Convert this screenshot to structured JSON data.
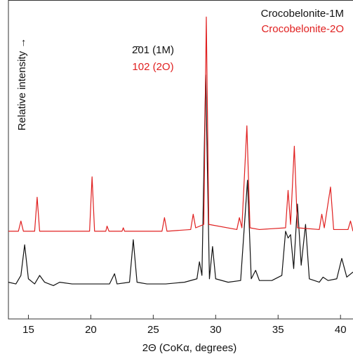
{
  "chart_data": {
    "type": "line",
    "x_label": "2Θ (CoKα, degrees)",
    "y_label": "Relative intensity →",
    "annotations": [
      "2̄01 (1M)",
      "102 (2O)"
    ],
    "xlim": [
      13.4,
      41.0
    ],
    "ylim": [
      6.2,
      100
    ],
    "xticks": [
      15,
      20,
      25,
      30,
      35,
      40
    ],
    "legend": "top-right",
    "series": [
      {
        "name": "Crocobelonite-1M",
        "color": "#111111",
        "x": [
          13.4,
          14.0,
          14.4,
          14.7,
          15.0,
          15.5,
          15.9,
          16.3,
          17.0,
          17.5,
          18.5,
          19.5,
          20.5,
          21.5,
          21.9,
          22.1,
          23.1,
          23.4,
          23.7,
          24.5,
          26.0,
          27.5,
          28.5,
          28.7,
          28.9,
          29.2,
          29.5,
          29.75,
          30.0,
          31.0,
          32.0,
          32.55,
          32.85,
          33.2,
          33.5,
          34.5,
          35.3,
          35.6,
          35.8,
          36.0,
          36.25,
          36.55,
          36.85,
          37.2,
          37.5,
          38.3,
          38.6,
          39.0,
          39.7,
          40.1,
          40.5,
          41.0
        ],
        "values": [
          17,
          16.5,
          19,
          28,
          18,
          16.5,
          19,
          17,
          16,
          17,
          16.5,
          16.5,
          16.5,
          16.5,
          19.5,
          16.5,
          17,
          29.5,
          17,
          16.5,
          16.5,
          17,
          18,
          23,
          19,
          78,
          18,
          27.5,
          18,
          17,
          17.5,
          47,
          18,
          20.5,
          17.5,
          17.5,
          19,
          32,
          30,
          31,
          21,
          40,
          22,
          34,
          18,
          17,
          18.5,
          17.5,
          18,
          24,
          18.5,
          20
        ]
      },
      {
        "name": "Crocobelonite-2O",
        "color": "#e02020",
        "x": [
          13.4,
          14.2,
          14.4,
          14.6,
          15.5,
          15.7,
          15.9,
          19.9,
          20.1,
          20.3,
          21.2,
          21.3,
          21.45,
          22.5,
          22.6,
          22.7,
          25.7,
          25.9,
          26.1,
          28.0,
          28.2,
          28.4,
          29.05,
          29.25,
          29.45,
          31.7,
          31.9,
          32.1,
          32.5,
          32.75,
          33.5,
          35.6,
          35.8,
          36.0,
          36.3,
          36.55,
          38.3,
          38.5,
          38.7,
          39.2,
          39.45,
          40.6,
          40.8,
          41.0
        ],
        "values": [
          32,
          32,
          35,
          32,
          32,
          42,
          32,
          32,
          48,
          32,
          32,
          33.5,
          32,
          32,
          33,
          32,
          32,
          36,
          32,
          32.5,
          37,
          33,
          34,
          95,
          34,
          32.5,
          36,
          33,
          63,
          33,
          32.5,
          33,
          44,
          34,
          57,
          33,
          32.5,
          37,
          33,
          45,
          32.5,
          32.5,
          35,
          32
        ]
      }
    ]
  }
}
